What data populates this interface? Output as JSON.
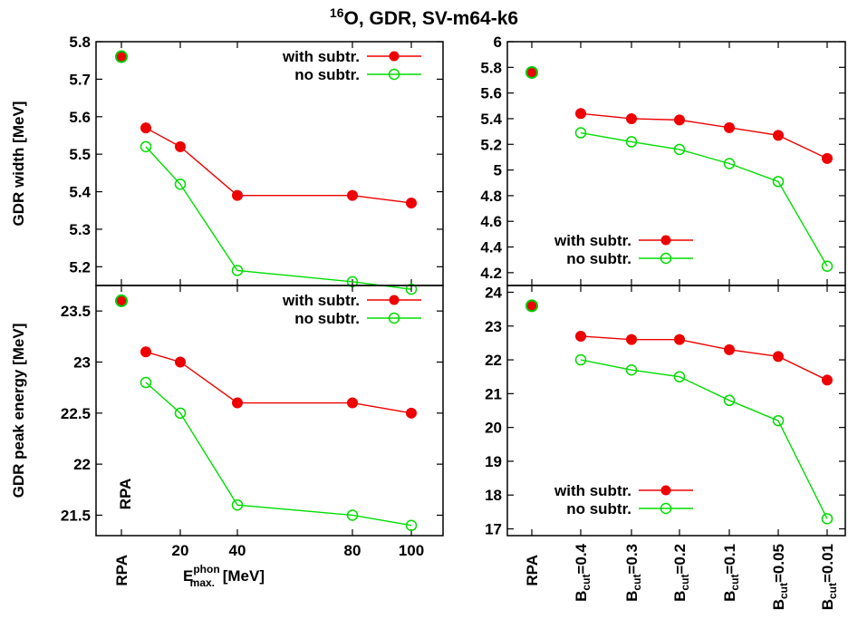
{
  "title": {
    "sup": "16",
    "main": "O, GDR, SV-m64-k6"
  },
  "colors": {
    "with": "#ee0000",
    "no": "#00dd00",
    "rpa_fill": "#ee0000",
    "rpa_ring": "#00cc00"
  },
  "legend": {
    "with": "with subtr.",
    "no": "no subtr."
  },
  "left_xaxis": {
    "label_main": "E",
    "label_sup": "phon",
    "label_sub": "max.",
    "label_unit": " [MeV]",
    "ticks": [
      "RPA",
      "20",
      "40",
      "80",
      "100"
    ]
  },
  "right_xaxis": {
    "ticks": [
      {
        "main": "B",
        "sub": "cut",
        "val": "=0.4"
      },
      {
        "main": "B",
        "sub": "cut",
        "val": "=0.3"
      },
      {
        "main": "B",
        "sub": "cut",
        "val": "=0.2"
      },
      {
        "main": "B",
        "sub": "cut",
        "val": "=0.1"
      },
      {
        "main": "B",
        "sub": "cut",
        "val": "=0.05"
      },
      {
        "main": "B",
        "sub": "cut",
        "val": "=0.01"
      }
    ],
    "rpa_label": "RPA"
  },
  "rpa_annotation": "RPA",
  "chart_data": [
    {
      "id": "top-left",
      "type": "line",
      "ylabel": "GDR width [MeV]",
      "ylim": [
        5.15,
        5.8
      ],
      "yticks": [
        "5.2",
        "5.3",
        "5.4",
        "5.5",
        "5.6",
        "5.7",
        "5.8"
      ],
      "ytick_values": [
        5.2,
        5.3,
        5.4,
        5.5,
        5.6,
        5.7,
        5.8
      ],
      "rpa": 5.76,
      "x": [
        10,
        20,
        40,
        80,
        100
      ],
      "series": [
        {
          "name": "with subtr.",
          "values": [
            5.57,
            5.52,
            5.39,
            5.39,
            5.37
          ]
        },
        {
          "name": "no subtr.",
          "values": [
            5.52,
            5.42,
            5.19,
            5.16,
            5.14
          ]
        }
      ],
      "legend_position": "top-right"
    },
    {
      "id": "top-right",
      "type": "line",
      "ylabel": "",
      "ylim": [
        4.1,
        6.0
      ],
      "yticks": [
        "4.2",
        "4.4",
        "4.6",
        "4.8",
        "5",
        "5.2",
        "5.4",
        "5.6",
        "5.8",
        "6"
      ],
      "ytick_values": [
        4.2,
        4.4,
        4.6,
        4.8,
        5.0,
        5.2,
        5.4,
        5.6,
        5.8,
        6.0
      ],
      "rpa": 5.76,
      "categories": [
        "0.4",
        "0.3",
        "0.2",
        "0.1",
        "0.05",
        "0.01"
      ],
      "series": [
        {
          "name": "with subtr.",
          "values": [
            5.44,
            5.4,
            5.39,
            5.33,
            5.27,
            5.09
          ]
        },
        {
          "name": "no subtr.",
          "values": [
            5.29,
            5.22,
            5.16,
            5.05,
            4.91,
            4.25
          ]
        }
      ],
      "legend_position": "bottom-left"
    },
    {
      "id": "bottom-left",
      "type": "line",
      "ylabel": "GDR peak energy [MeV]",
      "ylim": [
        21.3,
        23.75
      ],
      "yticks": [
        "21.5",
        "22",
        "22.5",
        "23",
        "23.5"
      ],
      "ytick_values": [
        21.5,
        22.0,
        22.5,
        23.0,
        23.5
      ],
      "rpa": 23.6,
      "x": [
        10,
        20,
        40,
        80,
        100
      ],
      "series": [
        {
          "name": "with subtr.",
          "values": [
            23.1,
            23.0,
            22.6,
            22.6,
            22.5
          ]
        },
        {
          "name": "no subtr.",
          "values": [
            22.8,
            22.5,
            21.6,
            21.5,
            21.4
          ]
        }
      ],
      "legend_position": "top-right"
    },
    {
      "id": "bottom-right",
      "type": "line",
      "ylabel": "",
      "ylim": [
        16.8,
        24.2
      ],
      "yticks": [
        "17",
        "18",
        "19",
        "20",
        "21",
        "22",
        "23",
        "24"
      ],
      "ytick_values": [
        17,
        18,
        19,
        20,
        21,
        22,
        23,
        24
      ],
      "rpa": 23.6,
      "categories": [
        "0.4",
        "0.3",
        "0.2",
        "0.1",
        "0.05",
        "0.01"
      ],
      "series": [
        {
          "name": "with subtr.",
          "values": [
            22.7,
            22.6,
            22.6,
            22.3,
            22.1,
            21.4
          ]
        },
        {
          "name": "no subtr.",
          "values": [
            22.0,
            21.7,
            21.5,
            20.8,
            20.2,
            17.3
          ]
        }
      ],
      "legend_position": "bottom-left"
    }
  ]
}
